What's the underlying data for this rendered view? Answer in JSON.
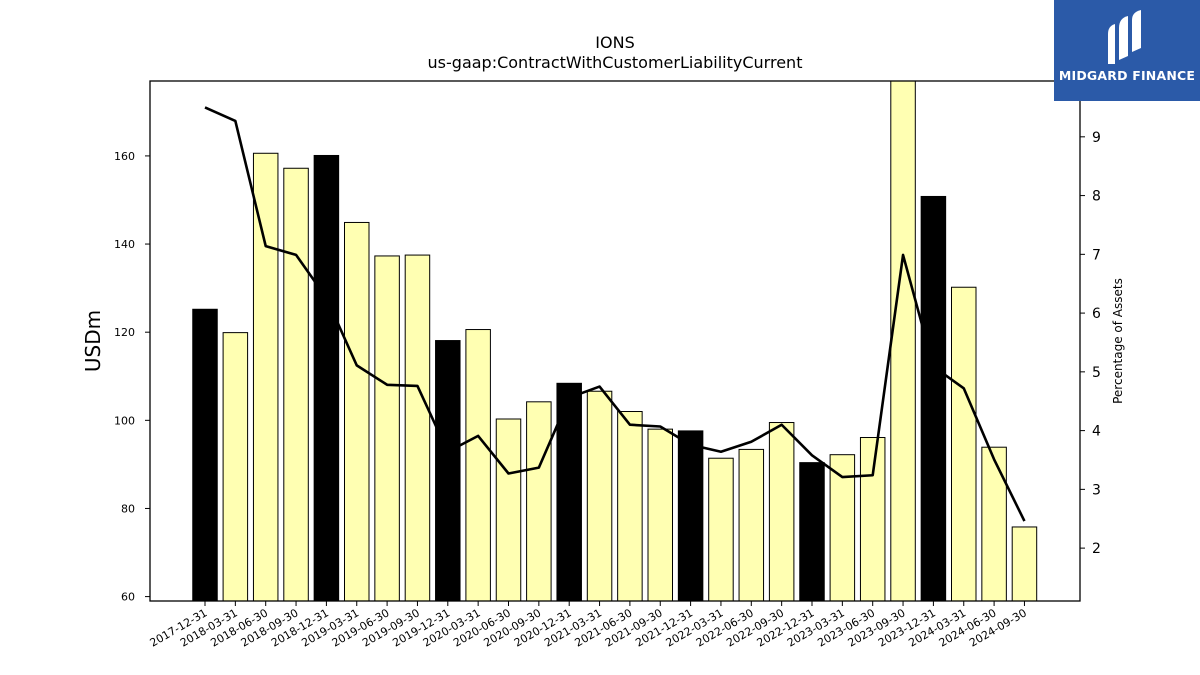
{
  "chart_data": {
    "type": "bar",
    "title": "IONS",
    "subtitle": "us-gaap:ContractWithCustomerLiabilityCurrent",
    "ylabel": "USDm",
    "y2label": "Percentage of Assets",
    "ylim": [
      59,
      177
    ],
    "y2lim": [
      1.1,
      9.95
    ],
    "yticks": [
      60,
      80,
      100,
      120,
      140,
      160
    ],
    "y2ticks": [
      2,
      3,
      4,
      5,
      6,
      7,
      8,
      9
    ],
    "categories": [
      "2017-12-31",
      "2018-03-31",
      "2018-06-30",
      "2018-09-30",
      "2018-12-31",
      "2019-03-31",
      "2019-06-30",
      "2019-09-30",
      "2019-12-31",
      "2020-03-31",
      "2020-06-30",
      "2020-09-30",
      "2020-12-31",
      "2021-03-31",
      "2021-06-30",
      "2021-09-30",
      "2021-12-31",
      "2022-03-31",
      "2022-06-30",
      "2022-09-30",
      "2022-12-31",
      "2023-03-31",
      "2023-06-30",
      "2023-09-30",
      "2023-12-31",
      "2024-03-31",
      "2024-06-30",
      "2024-09-30"
    ],
    "series": [
      {
        "type": "bar",
        "axis": "left",
        "values": [
          125.2,
          119.9,
          160.6,
          157.2,
          160.1,
          144.9,
          137.3,
          137.5,
          118.1,
          120.6,
          100.3,
          104.2,
          108.4,
          106.6,
          102.0,
          98.0,
          97.6,
          91.4,
          93.4,
          99.5,
          90.4,
          92.2,
          96.1,
          177.0,
          150.8,
          130.2,
          93.9,
          75.8
        ],
        "colors": [
          "#000000",
          "#ffffb2",
          "#ffffb2",
          "#ffffb2",
          "#000000",
          "#ffffb2",
          "#ffffb2",
          "#ffffb2",
          "#000000",
          "#ffffb2",
          "#ffffb2",
          "#ffffb2",
          "#000000",
          "#ffffb2",
          "#ffffb2",
          "#ffffb2",
          "#000000",
          "#ffffb2",
          "#ffffb2",
          "#ffffb2",
          "#000000",
          "#ffffb2",
          "#ffffb2",
          "#ffffb2",
          "#000000",
          "#ffffb2",
          "#ffffb2",
          "#ffffb2"
        ]
      },
      {
        "type": "line",
        "axis": "right",
        "color": "#000000",
        "values": [
          9.5,
          9.27,
          7.14,
          6.99,
          6.26,
          5.11,
          4.78,
          4.76,
          3.64,
          3.91,
          3.27,
          3.37,
          4.56,
          4.75,
          4.1,
          4.07,
          3.76,
          3.64,
          3.81,
          4.1,
          3.58,
          3.21,
          3.24,
          6.99,
          5.09,
          4.72,
          3.51,
          2.46
        ]
      }
    ]
  },
  "logo": {
    "text": "MIDGARD FINANCE",
    "background": "#2b5aa8"
  }
}
